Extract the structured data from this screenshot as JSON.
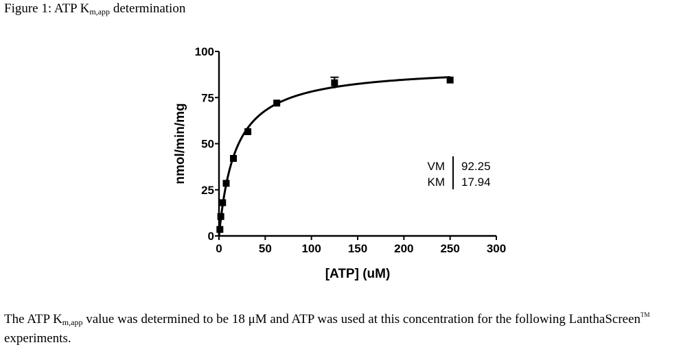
{
  "figure": {
    "title_prefix": "Figure 1: ATP K",
    "title_subscript": "m,app",
    "title_suffix": " determination"
  },
  "caption": {
    "part1": "The  ATP K",
    "subscript": "m,app",
    "part2": " value was determined to be 18 μM and ATP was used at this concentration for the following LanthaScreen",
    "superscript": "TM",
    "part3": " experiments."
  },
  "chart_data": {
    "type": "scatter",
    "title": "",
    "xlabel": "[ATP] (uM)",
    "ylabel": "nmol/min/mg",
    "xlim": [
      0,
      300
    ],
    "ylim": [
      0,
      100
    ],
    "x_ticks": [
      0,
      50,
      100,
      150,
      200,
      250,
      300
    ],
    "y_ticks": [
      0,
      25,
      50,
      75,
      100
    ],
    "grid": false,
    "legend": "none",
    "series": [
      {
        "points": [
          {
            "x": 0.98,
            "y": 3.5
          },
          {
            "x": 1.95,
            "y": 10.5
          },
          {
            "x": 3.9,
            "y": 18
          },
          {
            "x": 7.8,
            "y": 28.5
          },
          {
            "x": 15.6,
            "y": 42
          },
          {
            "x": 31.25,
            "y": 56.5
          },
          {
            "x": 62.5,
            "y": 72
          },
          {
            "x": 125,
            "y": 83,
            "err": 3
          },
          {
            "x": 250,
            "y": 84.5
          }
        ]
      }
    ],
    "fit": {
      "model": "michaelis-menten",
      "vmax": 92.25,
      "km": 17.94
    },
    "fit_table": [
      {
        "label": "VM",
        "value": "92.25"
      },
      {
        "label": "KM",
        "value": "17.94"
      }
    ],
    "colors": {
      "ink": "#000000"
    }
  }
}
